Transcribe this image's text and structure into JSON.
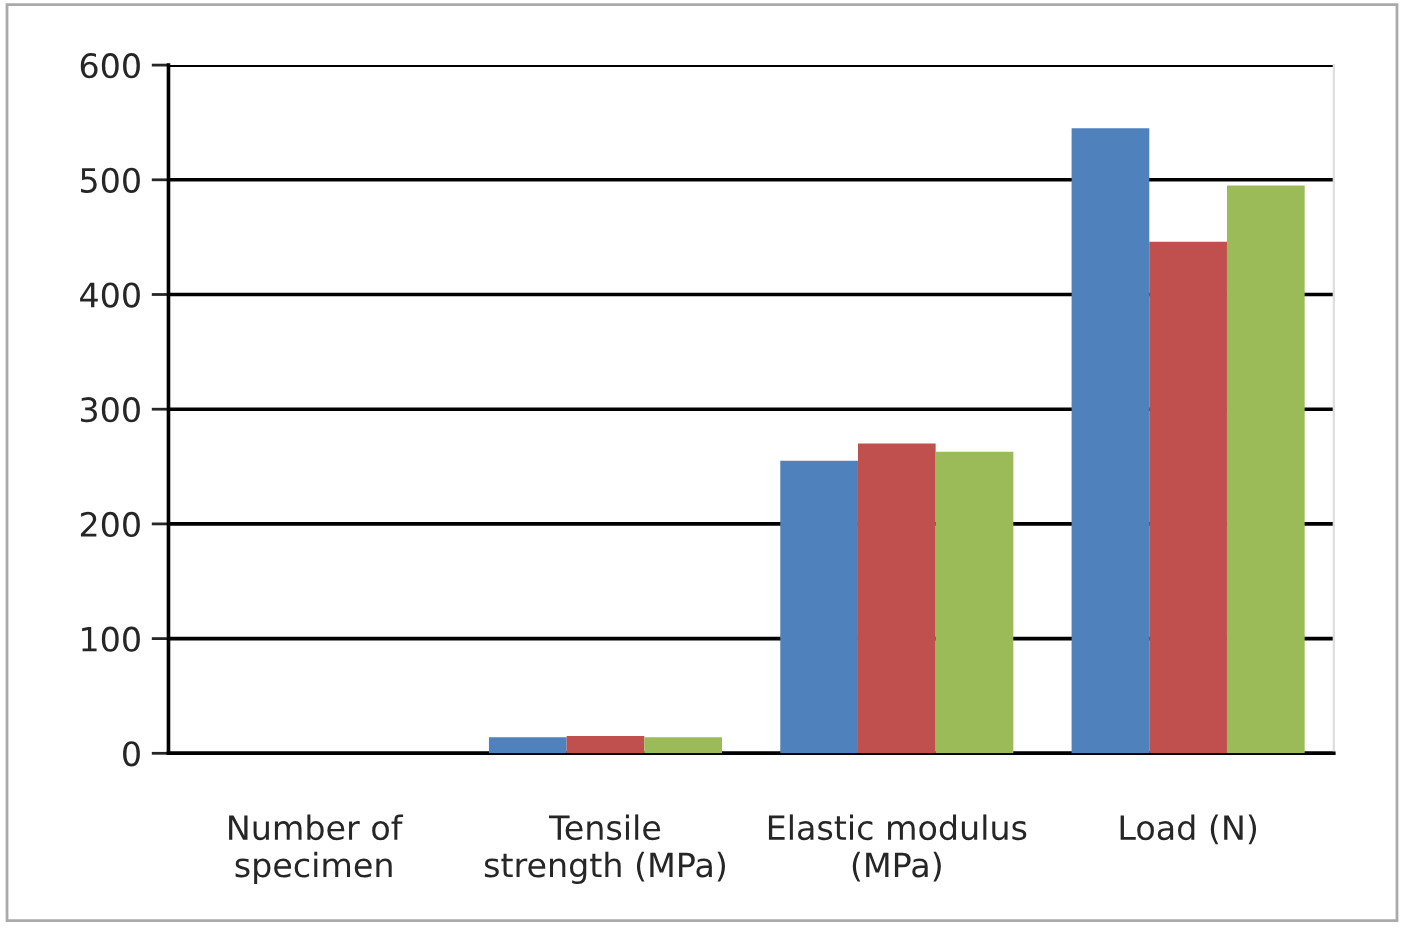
{
  "chart_data": {
    "type": "bar",
    "categories": [
      "Number of\nspecimen",
      "Tensile\nstrength (MPa)",
      "Elastic modulus\n(MPa)",
      "Load (N)"
    ],
    "series": [
      {
        "color": "#4f81bd",
        "values": [
          0,
          14,
          255,
          545
        ]
      },
      {
        "color": "#c0504d",
        "values": [
          0,
          15,
          270,
          446
        ]
      },
      {
        "color": "#9bbb59",
        "values": [
          0,
          14,
          263,
          495
        ]
      }
    ],
    "ylim": [
      0,
      600
    ],
    "yticks": [
      0,
      100,
      200,
      300,
      400,
      500,
      600
    ],
    "grid": "y",
    "legend": false
  }
}
